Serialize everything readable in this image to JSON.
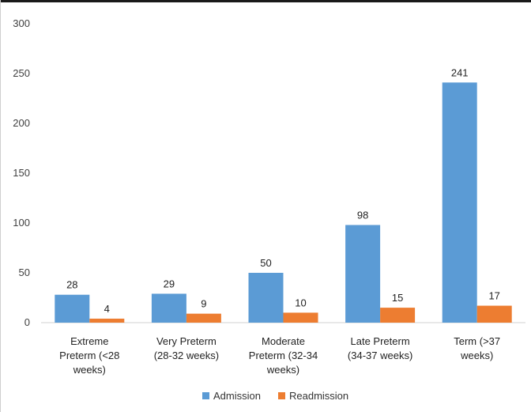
{
  "chart_data": {
    "type": "bar",
    "categories": [
      [
        "Extreme",
        "Preterm (<28",
        "weeks)"
      ],
      [
        "Very Preterm",
        "(28-32 weeks)"
      ],
      [
        "Moderate",
        "Preterm (32-34",
        "weeks)"
      ],
      [
        "Late Preterm",
        "(34-37 weeks)"
      ],
      [
        "Term (>37",
        "weeks)"
      ]
    ],
    "series": [
      {
        "name": "Admission",
        "color": "#5b9bd5",
        "values": [
          28,
          29,
          50,
          98,
          241
        ]
      },
      {
        "name": "Readmission",
        "color": "#ed7d31",
        "values": [
          4,
          9,
          10,
          15,
          17
        ]
      }
    ],
    "ylim": [
      0,
      300
    ],
    "yticks": [
      0,
      50,
      100,
      150,
      200,
      250,
      300
    ],
    "grid": false,
    "legend_position": "bottom"
  }
}
